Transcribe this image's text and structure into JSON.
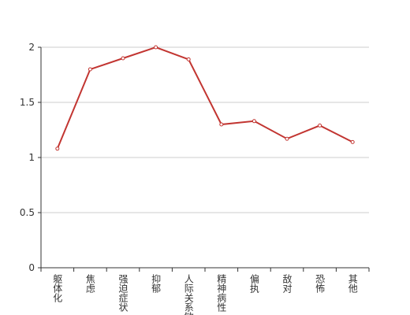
{
  "chart_data": {
    "type": "line",
    "categories": [
      "躯体化",
      "焦虑",
      "强迫症状",
      "抑郁",
      "人际关系敏感",
      "精神病性",
      "偏执",
      "敌对",
      "恐怖",
      "其他"
    ],
    "values": [
      1.08,
      1.8,
      1.9,
      2.0,
      1.89,
      1.3,
      1.33,
      1.17,
      1.29,
      1.14
    ],
    "color": "#c23531",
    "ylim": [
      0,
      2
    ],
    "yticks": [
      0,
      0.5,
      1,
      1.5,
      2
    ],
    "grid": true
  }
}
